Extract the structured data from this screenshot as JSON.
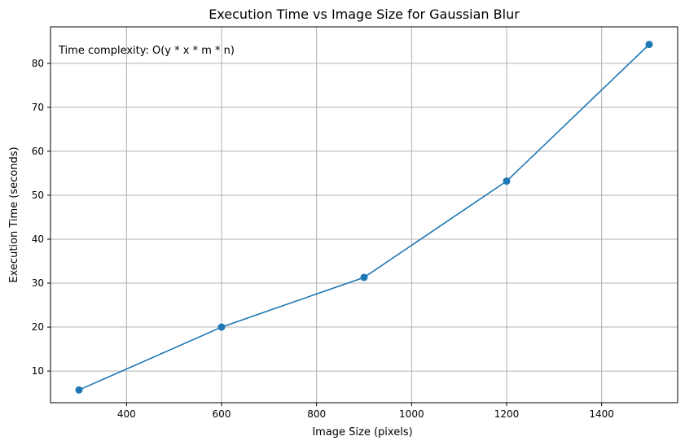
{
  "chart_data": {
    "type": "line",
    "title": "Execution Time vs Image Size for Gaussian Blur",
    "xlabel": "Image Size (pixels)",
    "ylabel": "Execution Time (seconds)",
    "annotation": "Time complexity: O(y * x * m * n)",
    "xlim": [
      240,
      1560
    ],
    "ylim": [
      2.8,
      88.3
    ],
    "x_ticks": [
      400,
      600,
      800,
      1000,
      1200,
      1400
    ],
    "y_ticks": [
      10,
      20,
      30,
      40,
      50,
      60,
      70,
      80
    ],
    "grid": true,
    "series": [
      {
        "color": "#1f77b4",
        "marker": "circle",
        "x": [
          300,
          600,
          900,
          1200,
          1500
        ],
        "y": [
          5.7,
          20.0,
          31.3,
          53.2,
          84.3
        ]
      }
    ]
  }
}
